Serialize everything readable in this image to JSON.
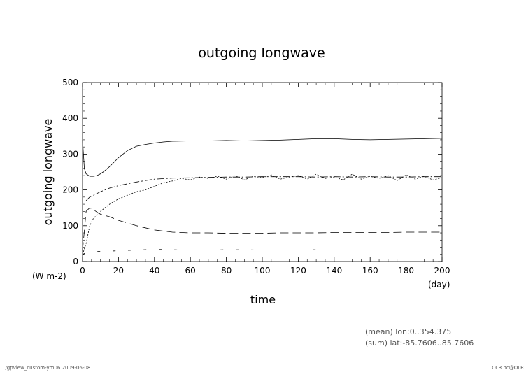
{
  "chart_data": {
    "type": "line",
    "title": "outgoing longwave",
    "xlabel": "time",
    "xunit": "(day)",
    "ylabel": "outgoing longwave",
    "yunit": "(W m-2)",
    "xlim": [
      0,
      200
    ],
    "ylim": [
      0,
      500
    ],
    "xticks": [
      "0",
      "20",
      "40",
      "60",
      "80",
      "100",
      "120",
      "140",
      "160",
      "180",
      "200"
    ],
    "yticks": [
      "0",
      "100",
      "200",
      "300",
      "400",
      "500"
    ],
    "grid": false,
    "series": [
      {
        "style": "solid",
        "x": [
          0,
          1,
          2,
          4,
          6,
          8,
          10,
          12,
          15,
          18,
          20,
          25,
          30,
          35,
          40,
          45,
          50,
          60,
          70,
          80,
          90,
          100,
          110,
          120,
          130,
          140,
          150,
          160,
          170,
          180,
          190,
          200
        ],
        "values": [
          340,
          260,
          245,
          238,
          238,
          240,
          245,
          252,
          265,
          280,
          290,
          310,
          322,
          327,
          331,
          334,
          336,
          337,
          337,
          338,
          337,
          338,
          339,
          341,
          343,
          343,
          341,
          340,
          341,
          342,
          343,
          344
        ]
      },
      {
        "style": "dash-dot",
        "x": [
          2,
          4,
          6,
          10,
          15,
          20,
          30,
          40,
          50,
          60,
          70,
          80,
          90,
          100,
          110,
          120,
          130,
          140,
          150,
          160,
          170,
          180,
          190,
          200
        ],
        "values": [
          170,
          180,
          185,
          195,
          205,
          212,
          222,
          230,
          233,
          234,
          235,
          236,
          236,
          237,
          237,
          237,
          236,
          237,
          236,
          237,
          236,
          236,
          237,
          237
        ]
      },
      {
        "style": "dotted",
        "x": [
          0,
          2,
          4,
          6,
          8,
          10,
          12,
          15,
          20,
          25,
          30,
          35,
          40,
          45,
          50,
          55,
          60,
          65,
          70,
          75,
          80,
          85,
          90,
          95,
          100,
          105,
          110,
          115,
          120,
          125,
          130,
          135,
          140,
          145,
          150,
          155,
          160,
          165,
          170,
          175,
          180,
          185,
          190,
          195,
          200
        ],
        "values": [
          20,
          50,
          100,
          120,
          130,
          140,
          148,
          160,
          175,
          185,
          195,
          200,
          210,
          220,
          225,
          232,
          228,
          236,
          232,
          238,
          230,
          240,
          228,
          238,
          234,
          242,
          230,
          236,
          240,
          230,
          244,
          232,
          236,
          228,
          244,
          230,
          238,
          232,
          240,
          226,
          242,
          230,
          238,
          228,
          234
        ]
      },
      {
        "style": "long-dash",
        "x": [
          0,
          2,
          4,
          6,
          8,
          10,
          15,
          20,
          30,
          40,
          50,
          60,
          70,
          80,
          90,
          100,
          110,
          120,
          130,
          140,
          150,
          160,
          170,
          180,
          190,
          200
        ],
        "values": [
          30,
          140,
          150,
          145,
          138,
          132,
          125,
          115,
          100,
          88,
          82,
          80,
          80,
          79,
          79,
          79,
          80,
          80,
          80,
          81,
          81,
          81,
          81,
          82,
          82,
          82
        ]
      },
      {
        "style": "sparse-dash",
        "x": [
          0,
          2,
          5,
          10,
          20,
          30,
          40,
          50,
          60,
          70,
          80,
          90,
          100,
          110,
          120,
          130,
          140,
          150,
          160,
          170,
          180,
          190,
          200
        ],
        "values": [
          20,
          25,
          28,
          28,
          30,
          32,
          34,
          33,
          32,
          32,
          33,
          33,
          32,
          32,
          32,
          33,
          32,
          32,
          32,
          32,
          32,
          32,
          32
        ]
      }
    ]
  },
  "notes": {
    "mean": "(mean) lon:0..354.375",
    "sum": "(sum) lat:-85.7606..85.7606"
  },
  "footer": {
    "left": "../gpview_custom-ym06  2009-06-08",
    "right": "OLR.nc@OLR"
  }
}
